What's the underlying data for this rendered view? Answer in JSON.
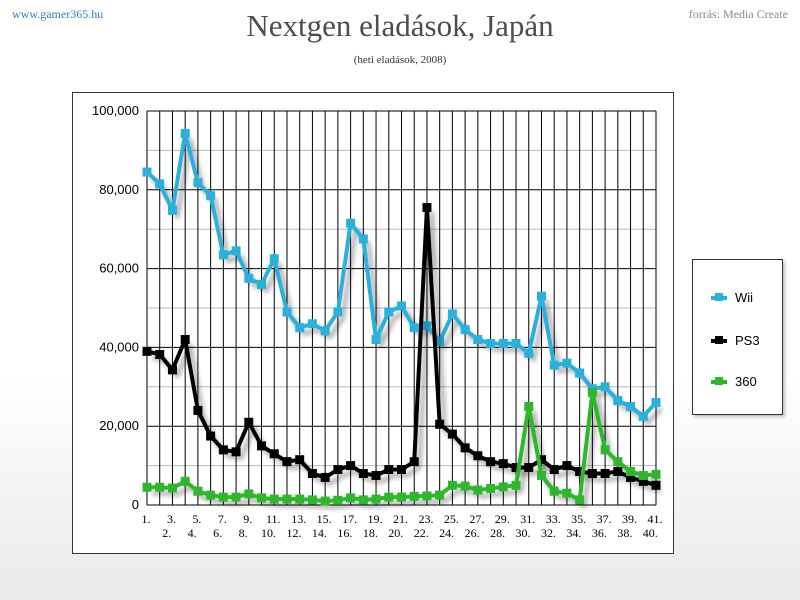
{
  "header": {
    "site": "www.gamer365.hu",
    "source": "forrás: Media Create",
    "title": "Nextgen eladások, Japán",
    "subtitle": "(heti eladások, 2008)"
  },
  "chart_data": {
    "type": "line",
    "title": "Nextgen eladások, Japán",
    "subtitle": "(heti eladások, 2008)",
    "xlabel": "",
    "ylabel": "",
    "ylim": [
      0,
      100000
    ],
    "y_ticks": [
      "0",
      "20,000",
      "40,000",
      "60,000",
      "80,000",
      "100,000"
    ],
    "grid": true,
    "legend_position": "right",
    "categories": [
      "1.",
      "2.",
      "3.",
      "4.",
      "5.",
      "6.",
      "7.",
      "8.",
      "9.",
      "10.",
      "11.",
      "12.",
      "13.",
      "14.",
      "15.",
      "16.",
      "17.",
      "18.",
      "19.",
      "20.",
      "21.",
      "22.",
      "23.",
      "24.",
      "25.",
      "26.",
      "27.",
      "28.",
      "29.",
      "30.",
      "31.",
      "32.",
      "33.",
      "34.",
      "35.",
      "36.",
      "37.",
      "38.",
      "39.",
      "40.",
      "41."
    ],
    "series": [
      {
        "name": "Wii",
        "color": "#29b1de",
        "values": [
          84500,
          81500,
          74800,
          94300,
          81800,
          78500,
          63500,
          64500,
          57500,
          56000,
          62500,
          49000,
          45000,
          46000,
          44200,
          49000,
          71500,
          67500,
          42000,
          49000,
          50500,
          45000,
          45500,
          41500,
          48500,
          44500,
          42000,
          41000,
          41000,
          41000,
          38500,
          53000,
          35500,
          36000,
          33500,
          29500,
          30000,
          26500,
          25000,
          22500,
          26000
        ]
      },
      {
        "name": "PS3",
        "color": "#000000",
        "values": [
          39000,
          38200,
          34300,
          42000,
          24000,
          17500,
          14000,
          13500,
          21000,
          15000,
          13000,
          11000,
          11500,
          8000,
          7000,
          9000,
          10000,
          8000,
          7500,
          9000,
          9000,
          11000,
          75500,
          20500,
          18000,
          14500,
          12500,
          11000,
          10500,
          9500,
          9500,
          11500,
          9000,
          10000,
          8500,
          8000,
          8000,
          8500,
          7000,
          6000,
          5000
        ]
      },
      {
        "name": "360",
        "color": "#2cb82a",
        "values": [
          4500,
          4500,
          4300,
          6000,
          3500,
          2500,
          2000,
          2000,
          2800,
          1800,
          1500,
          1500,
          1500,
          1300,
          1000,
          1200,
          1800,
          1300,
          1500,
          2000,
          2000,
          2200,
          2300,
          2500,
          5000,
          4800,
          3800,
          4200,
          4600,
          5000,
          25000,
          7500,
          3500,
          3000,
          1300,
          28500,
          14000,
          11000,
          8500,
          7500,
          7800
        ]
      }
    ]
  }
}
